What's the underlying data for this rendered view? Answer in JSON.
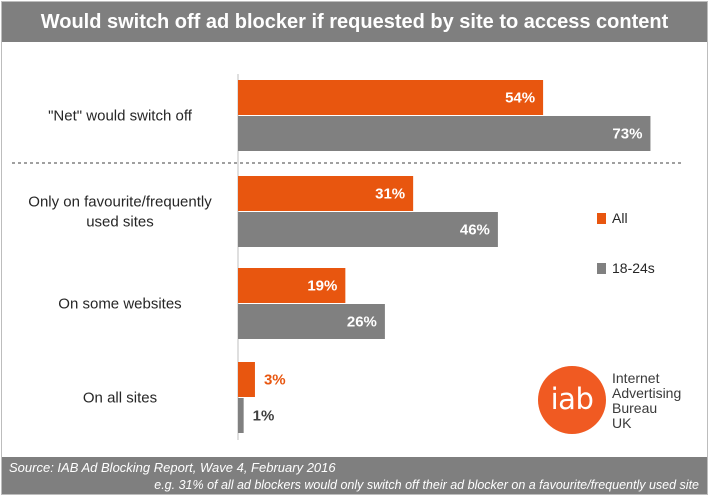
{
  "title": "Would switch off ad blocker if requested by site to access content",
  "chart_data": {
    "type": "bar",
    "orientation": "horizontal",
    "categories": [
      "\"Net\" would switch off",
      "Only on favourite/frequently used sites",
      "On some websites",
      "On all sites"
    ],
    "series": [
      {
        "name": "All",
        "values": [
          54,
          31,
          19,
          3
        ],
        "labels": [
          "54%",
          "31%",
          "19%",
          "3%"
        ],
        "color": "#e8560f"
      },
      {
        "name": "18-24s",
        "values": [
          73,
          46,
          26,
          1
        ],
        "labels": [
          "73%",
          "46%",
          "26%",
          "1%"
        ],
        "color": "#808080"
      }
    ],
    "unit": "%",
    "xlim": [
      0,
      100
    ],
    "legend_position": "right",
    "separator_after_category": 0
  },
  "footer": {
    "source": "Source: IAB Ad Blocking Report, Wave 4, February 2016",
    "note": "e.g. 31% of all ad blockers would only switch off their ad blocker on a favourite/frequently used site"
  },
  "logo": {
    "mark": "iab",
    "lines": [
      "Internet",
      "Advertising",
      "Bureau",
      "UK"
    ],
    "color": "#f05a22"
  }
}
